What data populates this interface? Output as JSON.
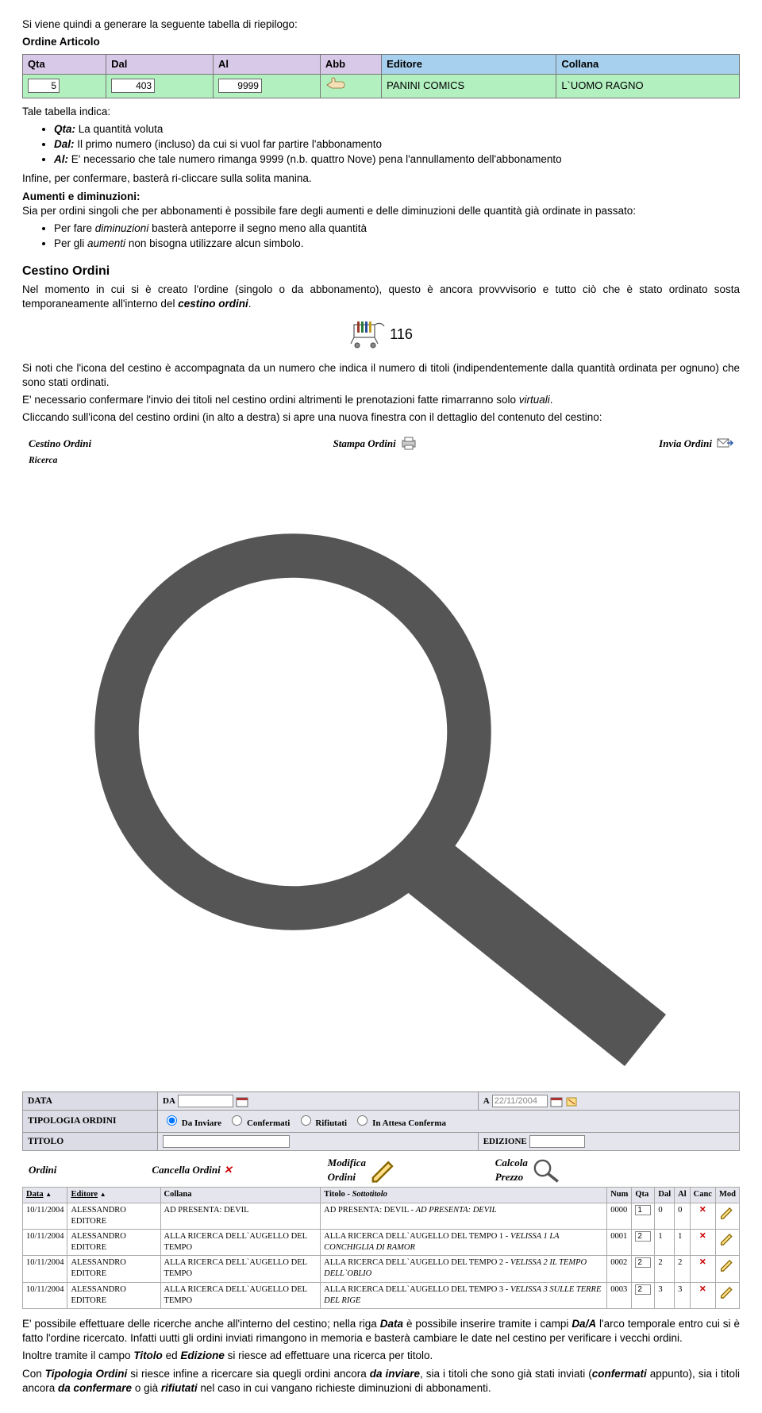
{
  "intro_line": "Si viene quindi a generare la seguente tabella di riepilogo:",
  "table_title": "Ordine Articolo",
  "summary": {
    "header_bg_left": "#d9c9e8",
    "header_bg_right": "#a7d0ee",
    "row_bg": "#b3f0c0",
    "cols": [
      "Qta",
      "Dal",
      "Al",
      "Abb",
      "Editore",
      "Collana"
    ],
    "row": {
      "qta": "5",
      "dal": "403",
      "al": "9999",
      "editore": "PANINI COMICS",
      "collana": "L`UOMO RAGNO"
    }
  },
  "tale_tabella": "Tale tabella indica:",
  "defs": {
    "qta_label": "Qta:",
    "qta_text": " La quantità voluta",
    "dal_label": "Dal:",
    "dal_text": " Il primo numero (incluso) da cui si vuol far partire l'abbonamento",
    "al_label": "Al:",
    "al_text": " E' necessario che tale numero rimanga 9999 (n.b. quattro Nove) pena l'annullamento dell'abbonamento"
  },
  "infine": "Infine, per confermare, basterà ri-cliccare sulla solita manina.",
  "aumenti": {
    "title": "Aumenti e diminuzioni:",
    "intro": "Sia per ordini singoli che per abbonamenti è possibile fare degli aumenti e delle diminuzioni delle quantità già ordinate in passato:",
    "b1_pre": "Per fare ",
    "b1_i": "diminuzioni",
    "b1_post": " basterà anteporre il segno meno alla quantità",
    "b2_pre": "Per gli ",
    "b2_i": "aumenti",
    "b2_post": " non bisogna utilizzare alcun simbolo."
  },
  "cestino_heading": "Cestino Ordini",
  "cestino_para": "Nel momento in cui si è creato l'ordine (singolo o da abbonamento), questo è ancora provvvisorio e tutto ciò che è stato ordinato sosta temporaneamente all'interno del ",
  "cestino_para_b": "cestino ordini",
  "cart_count": "116",
  "p_after_cart_1": "Si noti che l'icona del cestino è accompagnata da un numero che indica il numero di titoli (indipendentemente dalla quantità ordinata per ognuno) che sono stati ordinati.",
  "p_after_cart_2_pre": "E' necessario confermare l'invio dei titoli nel cestino ordini altrimenti le prenotazioni fatte rimarranno solo ",
  "p_after_cart_2_i": "virtuali",
  "p_after_cart_3": "Cliccando sull'icona del cestino ordini (in alto a destra) si apre una nuova finestra con il dettaglio del contenuto del cestino:",
  "panel": {
    "top": {
      "cestino": "Cestino Ordini",
      "stampa": "Stampa Ordini",
      "invia": "Invia Ordini"
    },
    "ricerca": "Ricerca",
    "filters": {
      "data": "DATA",
      "da": "DA",
      "a": "A",
      "a_val": "22/11/2004",
      "tipologia": "TIPOLOGIA ORDINI",
      "r1": "Da Inviare",
      "r2": "Confermati",
      "r3": "Rifiutati",
      "r4": "In Attesa Conferma",
      "titolo": "TITOLO",
      "edizione": "EDIZIONE"
    },
    "orders_bar": {
      "ordini": "Ordini",
      "cancella": "Cancella Ordini",
      "modifica": "Modifica Ordini",
      "calcola": "Calcola Prezzo"
    },
    "cols": {
      "data": "Data",
      "editore": "Editore",
      "collana": "Collana",
      "titolo_pre": "Titolo - ",
      "titolo_sotto": "Sottotitolo",
      "num": "Num",
      "qta": "Qta",
      "dal": "Dal",
      "al": "Al",
      "canc": "Canc",
      "mod": "Mod"
    },
    "rows": [
      {
        "data": "10/11/2004",
        "editore": "ALESSANDRO EDITORE",
        "collana": "AD PRESENTA: DEVIL",
        "titolo": "AD PRESENTA: DEVIL - ",
        "sotto": "AD PRESENTA: DEVIL",
        "num": "0000",
        "qta": "1",
        "dal": "0",
        "al": "0"
      },
      {
        "data": "10/11/2004",
        "editore": "ALESSANDRO EDITORE",
        "collana": "ALLA RICERCA DELL`AUGELLO DEL TEMPO",
        "titolo": "ALLA RICERCA DELL`AUGELLO DEL TEMPO 1 - ",
        "sotto": "VELISSA 1 LA CONCHIGLIA DI RAMOR",
        "num": "0001",
        "qta": "2",
        "dal": "1",
        "al": "1"
      },
      {
        "data": "10/11/2004",
        "editore": "ALESSANDRO EDITORE",
        "collana": "ALLA RICERCA DELL`AUGELLO DEL TEMPO",
        "titolo": "ALLA RICERCA DELL`AUGELLO DEL TEMPO 2 - ",
        "sotto": "VELISSA 2 IL TEMPO DELL`OBLIO",
        "num": "0002",
        "qta": "2",
        "dal": "2",
        "al": "2"
      },
      {
        "data": "10/11/2004",
        "editore": "ALESSANDRO EDITORE",
        "collana": "ALLA RICERCA DELL`AUGELLO DEL TEMPO",
        "titolo": "ALLA RICERCA DELL`AUGELLO DEL TEMPO 3 - ",
        "sotto": "VELISSA 3 SULLE TERRE DEL RIGE",
        "num": "0003",
        "qta": "2",
        "dal": "3",
        "al": "3"
      }
    ]
  },
  "final_p1_a": "E' possibile effettuare delle ricerche anche all'interno del cestino; nella riga ",
  "final_p1_b": "Data",
  "final_p1_c": " è possibile inserire tramite i campi ",
  "final_p1_d": "Da/A",
  "final_p1_e": " l'arco temporale entro cui si è fatto l'ordine ricercato. Infatti uutti gli ordini inviati rimangono in memoria e basterà cambiare le date nel cestino per verificare i vecchi ordini.",
  "final_p2_a": "Inoltre tramite il campo ",
  "final_p2_b": "Titolo",
  "final_p2_c": " ed ",
  "final_p2_d": "Edizione",
  "final_p2_e": " si riesce ad effettuare una ricerca per titolo.",
  "final_p3_a": "Con ",
  "final_p3_b": "Tipologia Ordini",
  "final_p3_c": " si riesce infine a ricercare sia quegli ordini ancora ",
  "final_p3_d": "da inviare",
  "final_p3_e": ", sia i titoli che sono già stati inviati (",
  "final_p3_f": "confermati",
  "final_p3_g": " appunto), sia i titoli ancora ",
  "final_p3_h": "da confermare",
  "final_p3_i": " o già ",
  "final_p3_j": "rifiutati",
  "final_p3_k": " nel caso in cui vangano richieste diminuzioni di abbonamenti."
}
